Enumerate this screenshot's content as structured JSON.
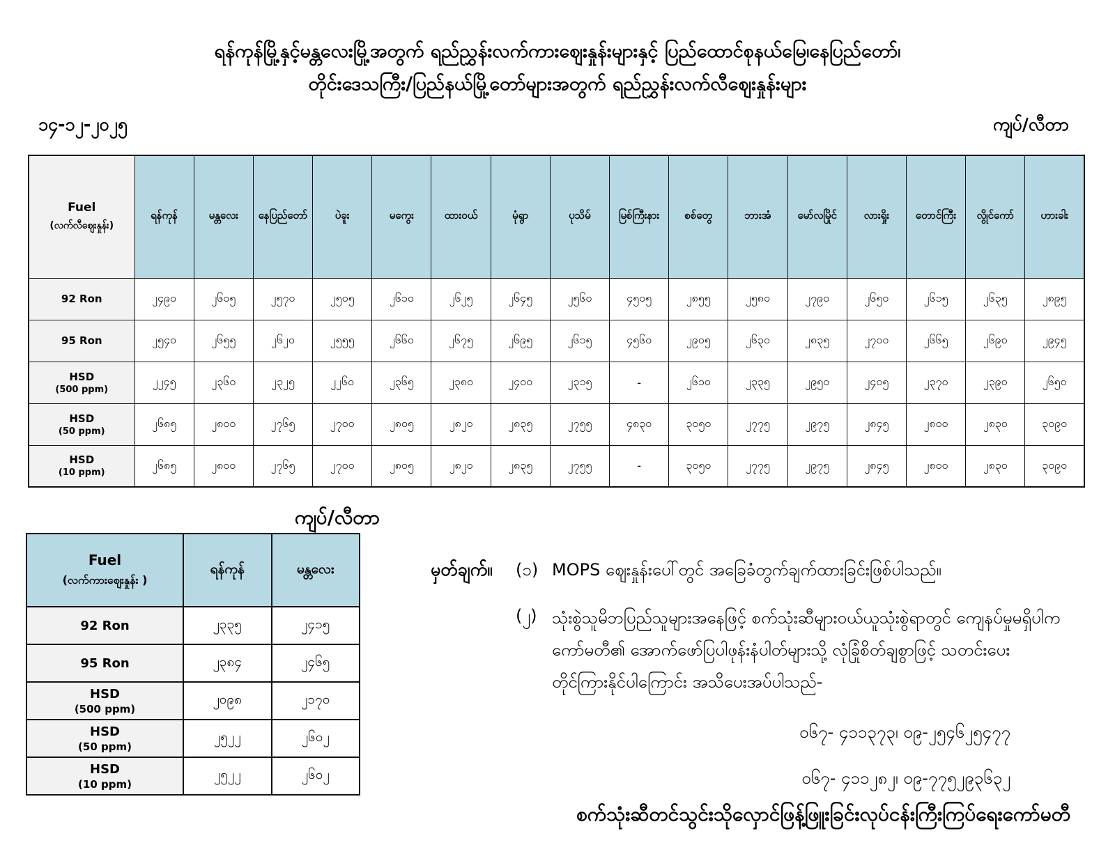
{
  "page": {
    "title_line1": "ရန်ကုန်မြို့နှင့်မန္တလေးမြို့အတွက် ရည်ညွှန်းလက်ကားဈေးနှုန်းများနှင့် ပြည်ထောင်စုနယ်မြေ၊နေပြည်တော်၊",
    "title_line2": "တိုင်းဒေသကြီး/ပြည်နယ်မြို့တော်များအတွက် ရည်ညွှန်းလက်လီဈေးနှုန်းများ",
    "date": "၁၄-၁၂-၂၀၂၅",
    "unit_label_top": "ကျပ်/လီတာ",
    "unit_label_bottom": "ကျပ်/လီတာ"
  },
  "colors": {
    "header_blue": "#b7d9e4",
    "label_gray": "#f2f2f2",
    "border_black": "#111111"
  },
  "retail_table": {
    "fuel_header": "Fuel",
    "fuel_subheader": "(လက်လီဈေးနှုန်း)",
    "cities": [
      "ရန်ကုန်",
      "မန္တလေး",
      "နေပြည်တော်",
      "ပဲခူး",
      "မကွေး",
      "ထားဝယ်",
      "မုံရွာ",
      "ပုသိမ်",
      "မြစ်ကြီးနား",
      "စစ်တွေ",
      "ဘားအံ",
      "မော်လမြိုင်",
      "လားရှိုး",
      "တောင်ကြီး",
      "လွိုင်ကော်",
      "ဟားခါး"
    ],
    "rows": [
      {
        "label": "92 Ron",
        "sublabel": "",
        "values": [
          "၂၄၉၀",
          "၂၆၀၅",
          "၂၅၇၀",
          "၂၅၀၅",
          "၂၆၁၀",
          "၂၆၂၅",
          "၂၆၄၅",
          "၂၅၆၀",
          "၄၅၀၅",
          "၂၈၅၅",
          "၂၅၈၀",
          "၂၇၉၀",
          "၂၆၅၀",
          "၂၆၁၅",
          "၂၆၃၅",
          "၂၈၉၅"
        ]
      },
      {
        "label": "95 Ron",
        "sublabel": "",
        "values": [
          "၂၅၄၀",
          "၂၆၅၅",
          "၂၆၂၀",
          "၂၅၅၅",
          "၂၆၆၀",
          "၂၆၇၅",
          "၂၆၉၅",
          "၂၆၁၅",
          "၄၅၆၀",
          "၂၉၀၅",
          "၂၆၃၀",
          "၂၈၃၅",
          "၂၇၀၀",
          "၂၆၆၅",
          "၂၆၉၀",
          "၂၉၄၅"
        ]
      },
      {
        "label": "HSD",
        "sublabel": "(500 ppm)",
        "values": [
          "၂၂၄၅",
          "၂၃၆၀",
          "၂၃၂၅",
          "၂၂၆၀",
          "၂၃၆၅",
          "၂၃၈၀",
          "၂၄၀၀",
          "၂၃၁၅",
          "-",
          "၂၆၁၀",
          "၂၃၃၅",
          "၂၉၅၀",
          "၂၄၀၅",
          "၂၃၇၀",
          "၂၃၉၀",
          "၂၆၅၀"
        ]
      },
      {
        "label": "HSD",
        "sublabel": "(50 ppm)",
        "values": [
          "၂၆၈၅",
          "၂၈၀၀",
          "၂၇၆၅",
          "၂၇၀၀",
          "၂၈၀၅",
          "၂၈၂၀",
          "၂၈၃၅",
          "၂၇၅၅",
          "၄၈၃၀",
          "၃၀၅၀",
          "၂၇၇၅",
          "၂၉၇၅",
          "၂၈၄၅",
          "၂၈၀၀",
          "၂၈၃၀",
          "၃၀၉၀"
        ]
      },
      {
        "label": "HSD",
        "sublabel": "(10 ppm)",
        "values": [
          "၂၆၈၅",
          "၂၈၀၀",
          "၂၇၆၅",
          "၂၇၀၀",
          "၂၈၀၅",
          "၂၈၂၀",
          "၂၈၃၅",
          "၂၇၅၅",
          "-",
          "၃၀၅၀",
          "၂၇၇၅",
          "၂၉၇၅",
          "၂၈၄၅",
          "၂၈၀၀",
          "၂၈၃၀",
          "၃၀၉၀"
        ]
      }
    ]
  },
  "wholesale_table": {
    "fuel_header": "Fuel",
    "fuel_subheader": "(လက်ကားဈေးနှုန်း )",
    "cities": [
      "ရန်ကုန်",
      "မန္တလေး"
    ],
    "rows": [
      {
        "label": "92 Ron",
        "sublabel": "",
        "values": [
          "၂၃၃၅",
          "၂၄၁၅"
        ]
      },
      {
        "label": "95 Ron",
        "sublabel": "",
        "values": [
          "၂၃၈၄",
          "၂၄၆၅"
        ]
      },
      {
        "label": "HSD",
        "sublabel": "(500 ppm)",
        "values": [
          "၂၀၉၈",
          "၂၁၇၀"
        ]
      },
      {
        "label": "HSD",
        "sublabel": "(50 ppm)",
        "values": [
          "၂၅၂၂",
          "၂၆၀၂"
        ]
      },
      {
        "label": "HSD",
        "sublabel": "(10 ppm)",
        "values": [
          "၂၅၂၂",
          "၂၆၀၂"
        ]
      }
    ]
  },
  "notes": {
    "heading": "မှတ်ချက်။",
    "note1_num": "(၁)",
    "note1_text": "MOPS ဈေးနှုန်းပေါ်တွင် အခြေခံတွက်ချက်ထားခြင်းဖြစ်ပါသည်။",
    "note2_num": "(၂)",
    "note2_lines": [
      "သုံးစွဲသူမိဘပြည်သူများအနေဖြင့် စက်သုံးဆီများဝယ်ယူသုံးစွဲရာတွင် ကျေနပ်မှုမရှိပါက",
      "ကော်မတီ၏ အောက်ဖော်ပြပါဖုန်းနံပါတ်များသို့ လုံခြုံစိတ်ချစွာဖြင့် သတင်းပေး",
      "တိုင်ကြားနိုင်ပါကြောင်း အသိပေးအပ်ပါသည်-"
    ],
    "phone_line1": "၀၆၇- ၄၁၁၃၇၃၊ ၀၉-၂၅၄၆၂၅၄၇၇",
    "phone_line2": "၀၆၇- ၄၁၁၂၈၂၊ ၀၉-၇၇၅၂၉၃၆၃၂",
    "footer": "စက်သုံးဆီတင်သွင်းသိုလှောင်ဖြန့်ဖြူးခြင်းလုပ်ငန်းကြီးကြပ်ရေးကော်မတီ"
  }
}
